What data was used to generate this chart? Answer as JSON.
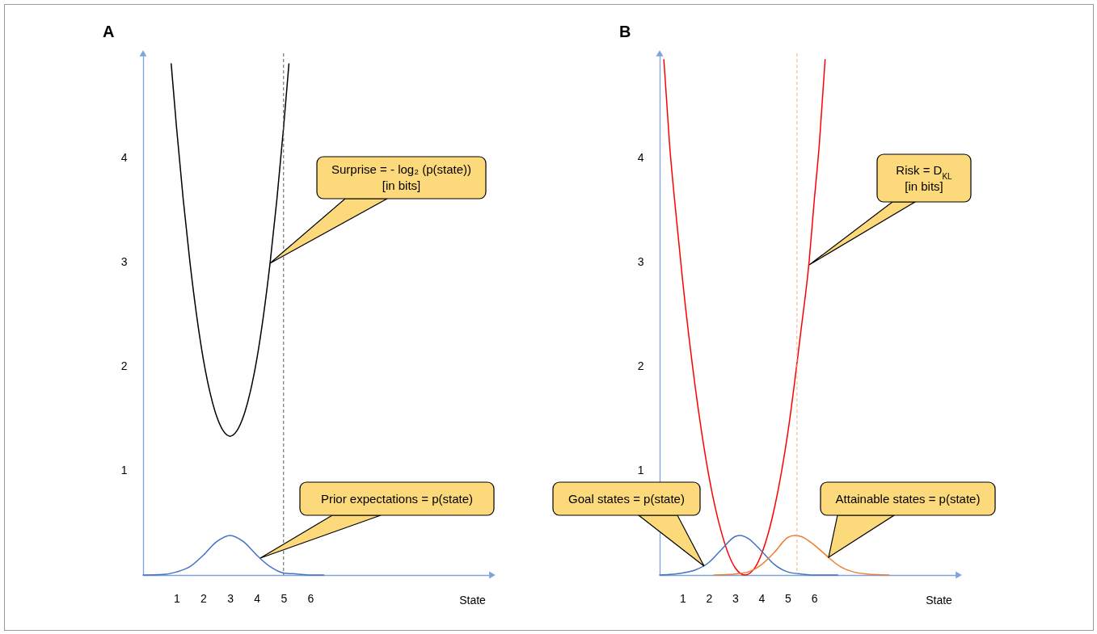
{
  "chart_data": [
    {
      "type": "line",
      "title": "A",
      "xlabel": "State",
      "xlim": [
        -0.25,
        12.8
      ],
      "ylim": [
        0,
        5
      ],
      "xticks": [
        1,
        2,
        3,
        4,
        5,
        6
      ],
      "yticks": [
        1,
        2,
        3,
        4
      ],
      "series": [
        {
          "color": "#000000",
          "x": [
            0.8,
            1.0,
            1.25,
            1.5,
            1.75,
            2.0,
            2.25,
            2.5,
            2.75,
            3.0,
            3.25,
            3.5,
            3.75,
            4.0,
            4.25,
            4.5,
            4.75,
            5.0,
            5.2
          ],
          "values": [
            4.9,
            4.29,
            3.6,
            3.0,
            2.49,
            2.07,
            1.75,
            1.52,
            1.38,
            1.33,
            1.38,
            1.52,
            1.75,
            2.07,
            2.49,
            3.0,
            3.6,
            4.29,
            4.9
          ]
        },
        {
          "color": "#4472c4",
          "x": [
            -0.25,
            0.5,
            1.0,
            1.5,
            2.0,
            2.5,
            3.0,
            3.5,
            4.0,
            4.5,
            5.0,
            5.5,
            6.0,
            6.5
          ],
          "values": [
            0.0,
            0.005,
            0.03,
            0.08,
            0.19,
            0.32,
            0.38,
            0.32,
            0.19,
            0.08,
            0.02,
            0.01,
            0.0,
            0.0
          ]
        }
      ],
      "ref_lines": [
        {
          "axis": "x",
          "value": 5,
          "color": "#595959",
          "line_style": "dashed"
        }
      ],
      "annotations": [
        "Surprise = - log₂ (p(state))\n[in bits]",
        "Prior expectations = p(state)"
      ]
    },
    {
      "type": "line",
      "title": "B",
      "xlabel": "State",
      "xlim": [
        0.13,
        11.5
      ],
      "ylim": [
        0,
        5
      ],
      "xticks": [
        1,
        2,
        3,
        4,
        5,
        6
      ],
      "yticks": [
        1,
        2,
        3,
        4
      ],
      "series": [
        {
          "color": "#ff0000",
          "x": [
            0.29,
            0.5,
            0.75,
            1.0,
            1.5,
            2.0,
            2.5,
            3.0,
            3.38,
            3.75,
            4.0,
            4.5,
            5.0,
            5.5,
            5.81,
            6.0,
            6.2,
            6.42
          ],
          "values": [
            4.94,
            4.15,
            3.46,
            2.83,
            1.77,
            0.95,
            0.39,
            0.07,
            0.0,
            0.07,
            0.2,
            0.65,
            1.36,
            2.34,
            3.0,
            3.57,
            4.13,
            4.94
          ]
        },
        {
          "color": "#4472c4",
          "x": [
            0.13,
            0.5,
            1.0,
            1.5,
            2.0,
            2.5,
            3.0,
            3.2,
            3.5,
            4.0,
            4.5,
            5.0,
            5.5,
            6.0,
            6.9
          ],
          "values": [
            0.0,
            0.005,
            0.02,
            0.05,
            0.12,
            0.25,
            0.37,
            0.38,
            0.35,
            0.23,
            0.1,
            0.03,
            0.01,
            0.0,
            0.0
          ]
        },
        {
          "color": "#ed7d31",
          "x": [
            2.2,
            3.0,
            3.5,
            4.0,
            4.5,
            5.0,
            5.25,
            5.5,
            6.0,
            6.54,
            7.0,
            7.5,
            8.0,
            8.85
          ],
          "values": [
            0.0,
            0.01,
            0.03,
            0.1,
            0.22,
            0.36,
            0.38,
            0.37,
            0.29,
            0.17,
            0.08,
            0.03,
            0.01,
            0.0
          ]
        }
      ],
      "ref_lines": [
        {
          "axis": "x",
          "value": 5.35,
          "color": "#f4b183",
          "line_style": "dashed"
        }
      ],
      "annotations": [
        "Risk = D$_{KL}$\n[in bits]",
        "Goal states = p(state)",
        "Attainable states = p(state)"
      ]
    }
  ]
}
